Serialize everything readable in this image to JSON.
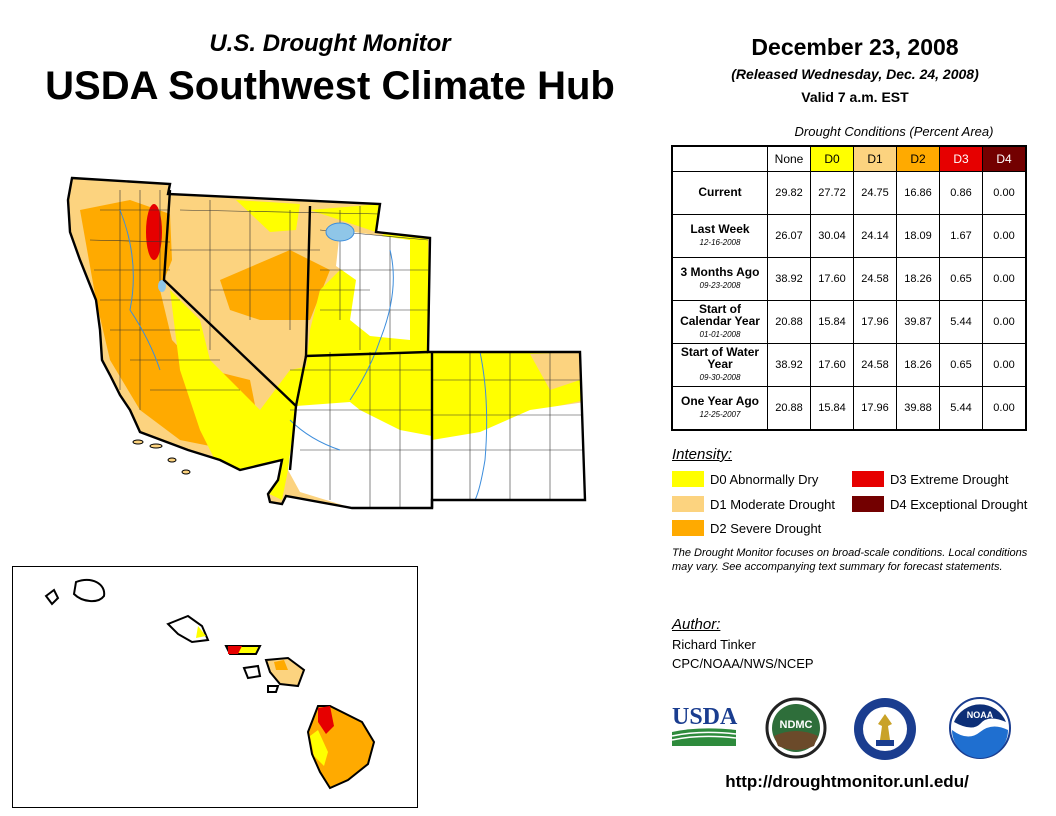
{
  "header": {
    "subtitle": "U.S. Drought Monitor",
    "title": "USDA Southwest Climate Hub",
    "date": "December 23, 2008",
    "released": "(Released Wednesday, Dec. 24, 2008)",
    "valid": "Valid 7 a.m. EST"
  },
  "table": {
    "caption": "Drought Conditions (Percent Area)",
    "columns": [
      "None",
      "D0",
      "D1",
      "D2",
      "D3",
      "D4"
    ],
    "column_colors": [
      "#ffffff",
      "#ffff00",
      "#fcd37f",
      "#ffaa00",
      "#e60000",
      "#730000"
    ],
    "column_text_colors": [
      "#000000",
      "#000000",
      "#000000",
      "#000000",
      "#ffffff",
      "#ffffff"
    ],
    "rows": [
      {
        "label": "Current",
        "date": "",
        "values": [
          "29.82",
          "27.72",
          "24.75",
          "16.86",
          "0.86",
          "0.00"
        ]
      },
      {
        "label": "Last Week",
        "date": "12-16-2008",
        "values": [
          "26.07",
          "30.04",
          "24.14",
          "18.09",
          "1.67",
          "0.00"
        ]
      },
      {
        "label": "3 Months Ago",
        "date": "09-23-2008",
        "values": [
          "38.92",
          "17.60",
          "24.58",
          "18.26",
          "0.65",
          "0.00"
        ]
      },
      {
        "label": "Start of Calendar Year",
        "date": "01-01-2008",
        "values": [
          "20.88",
          "15.84",
          "17.96",
          "39.87",
          "5.44",
          "0.00"
        ]
      },
      {
        "label": "Start of Water Year",
        "date": "09-30-2008",
        "values": [
          "38.92",
          "17.60",
          "24.58",
          "18.26",
          "0.65",
          "0.00"
        ]
      },
      {
        "label": "One Year Ago",
        "date": "12-25-2007",
        "values": [
          "20.88",
          "15.84",
          "17.96",
          "39.88",
          "5.44",
          "0.00"
        ]
      }
    ]
  },
  "legend": {
    "heading": "Intensity:",
    "items": [
      {
        "label": "D0 Abnormally Dry",
        "color": "#ffff00"
      },
      {
        "label": "D1 Moderate Drought",
        "color": "#fcd37f"
      },
      {
        "label": "D2 Severe Drought",
        "color": "#ffaa00"
      },
      {
        "label": "D3 Extreme Drought",
        "color": "#e60000"
      },
      {
        "label": "D4 Exceptional Drought",
        "color": "#730000"
      }
    ]
  },
  "note": "The Drought Monitor focuses on broad-scale conditions. Local conditions may vary. See accompanying text summary for forecast statements.",
  "author": {
    "heading": "Author:",
    "name": "Richard Tinker",
    "org": "CPC/NOAA/NWS/NCEP"
  },
  "logos": {
    "usda": "USDA",
    "ndmc": "NDMC",
    "noaa": "NOAA"
  },
  "url": "http://droughtmonitor.unl.edu/"
}
